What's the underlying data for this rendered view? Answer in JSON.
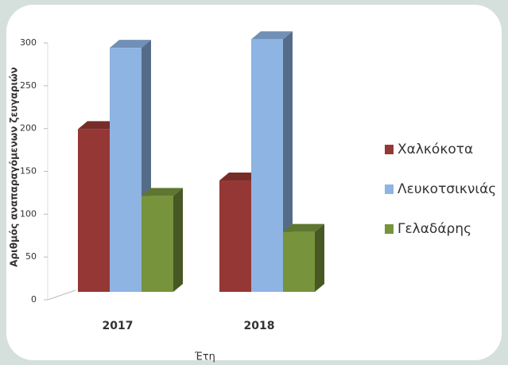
{
  "chart_data": {
    "type": "bar3d",
    "categories": [
      "2017",
      "2018"
    ],
    "series": [
      {
        "name": "Χαλκόκοτα",
        "color": "#953735",
        "values": [
          190,
          130
        ]
      },
      {
        "name": "Λευκοτσικνιάς",
        "color": "#8db4e2",
        "values": [
          285,
          295
        ]
      },
      {
        "name": "Γελαδάρης",
        "color": "#77933c",
        "values": [
          112,
          70
        ]
      }
    ],
    "ylim": [
      0,
      300
    ],
    "yticks": [
      0,
      50,
      100,
      150,
      200,
      250,
      300
    ],
    "y_label": "Αριθμός αναπαραγόμενων ζευγαριών",
    "x_label": "Έτη",
    "legend": "right"
  }
}
